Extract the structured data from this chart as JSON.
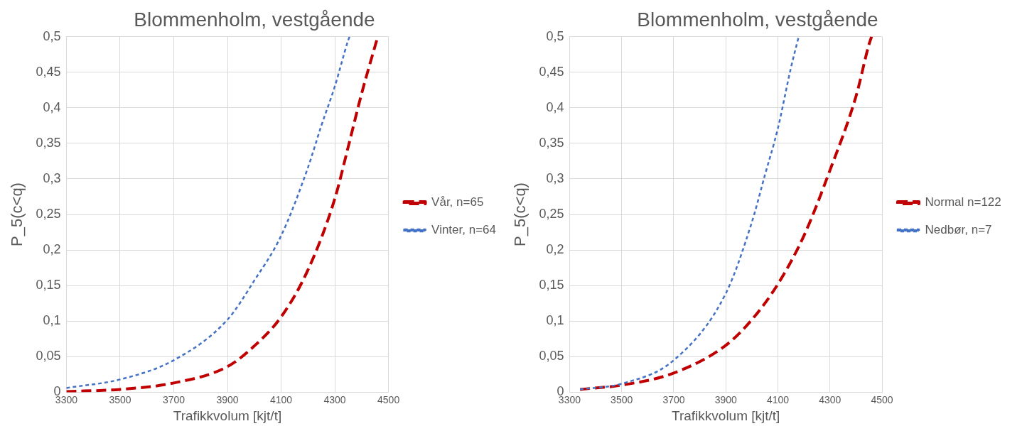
{
  "chart_data": [
    {
      "type": "line",
      "title": "Blommenholm, vestgående",
      "xlabel": "Trafikkvolum [kjt/t]",
      "ylabel": "P_5(c<q)",
      "xlim": [
        3300,
        4500
      ],
      "xticks": [
        3300,
        3500,
        3700,
        3900,
        4100,
        4300,
        4500
      ],
      "ylim": [
        0,
        0.5
      ],
      "yticks": [
        0,
        {
          "value": 0.05,
          "label": "0,05"
        },
        {
          "value": 0.1,
          "label": "0,1"
        },
        {
          "value": 0.15,
          "label": "0,15"
        },
        {
          "value": 0.2,
          "label": "0,2"
        },
        {
          "value": 0.25,
          "label": "0,25"
        },
        {
          "value": 0.3,
          "label": "0,3"
        },
        {
          "value": 0.35,
          "label": "0,35"
        },
        {
          "value": 0.4,
          "label": "0,4"
        },
        {
          "value": 0.45,
          "label": "0,45"
        },
        {
          "value": 0.5,
          "label": "0,5"
        }
      ],
      "grid": true,
      "legend": "right",
      "marker": "none",
      "series": [
        {
          "name": "Vår, n=65",
          "color": "#c00000",
          "line_style": "dashed",
          "x": [
            3300,
            3500,
            3700,
            3900,
            4000,
            4100,
            4200,
            4300,
            4350,
            4400,
            4460
          ],
          "values": [
            0.001,
            0.004,
            0.013,
            0.036,
            0.065,
            0.106,
            0.172,
            0.272,
            0.345,
            0.42,
            0.5
          ]
        },
        {
          "name": "Vinter, n=64",
          "color": "#4472c4",
          "line_style": "dashed",
          "x": [
            3300,
            3500,
            3700,
            3900,
            4000,
            4100,
            4200,
            4250,
            4300,
            4350,
            4355
          ],
          "values": [
            0.006,
            0.018,
            0.045,
            0.102,
            0.157,
            0.22,
            0.316,
            0.375,
            0.43,
            0.495,
            0.5
          ]
        }
      ]
    },
    {
      "type": "line",
      "title": "Blommenholm, vestgående",
      "xlabel": "Trafikkvolum [kjt/t]",
      "ylabel": "P_5(c<q)",
      "xlim": [
        3300,
        4500
      ],
      "xticks": [
        3300,
        3500,
        3700,
        3900,
        4100,
        4300,
        4500
      ],
      "ylim": [
        0,
        0.5
      ],
      "yticks": [
        0,
        {
          "value": 0.05,
          "label": "0,05"
        },
        {
          "value": 0.1,
          "label": "0,1"
        },
        {
          "value": 0.15,
          "label": "0,15"
        },
        {
          "value": 0.2,
          "label": "0,2"
        },
        {
          "value": 0.25,
          "label": "0,25"
        },
        {
          "value": 0.3,
          "label": "0,3"
        },
        {
          "value": 0.35,
          "label": "0,35"
        },
        {
          "value": 0.4,
          "label": "0,4"
        },
        {
          "value": 0.45,
          "label": "0,45"
        },
        {
          "value": 0.5,
          "label": "0,5"
        }
      ],
      "grid": true,
      "legend": "right",
      "marker": "none",
      "series": [
        {
          "name": "Normal n=122",
          "color": "#c00000",
          "line_style": "dashed",
          "x": [
            3340,
            3500,
            3700,
            3900,
            4000,
            4100,
            4200,
            4300,
            4400,
            4450,
            4460
          ],
          "values": [
            0.004,
            0.01,
            0.027,
            0.066,
            0.102,
            0.152,
            0.22,
            0.312,
            0.416,
            0.489,
            0.5
          ]
        },
        {
          "name": "Nedbør, n=7",
          "color": "#4472c4",
          "line_style": "dashed",
          "x": [
            3340,
            3500,
            3700,
            3900,
            4000,
            4050,
            4100,
            4150,
            4180
          ],
          "values": [
            0.004,
            0.012,
            0.045,
            0.139,
            0.239,
            0.305,
            0.371,
            0.456,
            0.5
          ]
        }
      ]
    }
  ]
}
